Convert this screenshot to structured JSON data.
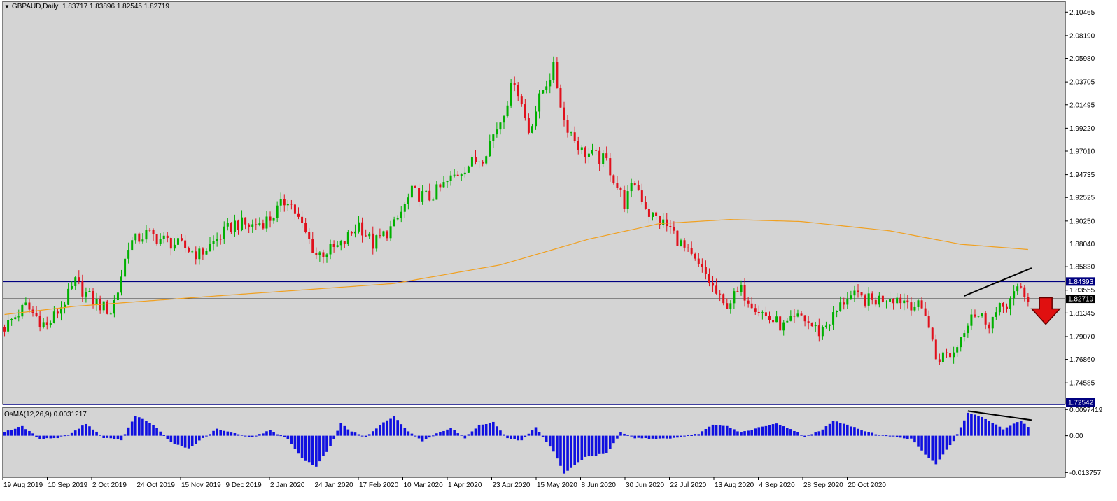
{
  "header": {
    "symbol": "GBPAUD,Daily",
    "ohlc": "1.83717 1.83896 1.82545 1.82719"
  },
  "osma": {
    "label": "OsMA(12,26,9)",
    "value": "0.0031217"
  },
  "colors": {
    "background": "#d4d4d4",
    "bull": "#00b000",
    "bear": "#e0101c",
    "ma": "#f0a020",
    "hline": "#000080",
    "histogram": "#1010e0",
    "arrow": "#e01010"
  },
  "chart_data": [
    {
      "type": "candlestick",
      "title": "",
      "symbol": "GBPAUD",
      "timeframe": "Daily",
      "ylim": [
        1.725,
        2.115
      ],
      "y_ticks": [
        "2.10465",
        "2.08190",
        "2.05980",
        "2.03705",
        "2.01495",
        "1.99220",
        "1.97010",
        "1.94735",
        "1.92525",
        "1.90250",
        "1.88040",
        "1.85830",
        "1.83555",
        "1.81345",
        "1.79070",
        "1.76860",
        "1.74585"
      ],
      "x_labels": [
        "19 Aug 2019",
        "10 Sep 2019",
        "2 Oct 2019",
        "24 Oct 2019",
        "15 Nov 2019",
        "9 Dec 2019",
        "2 Jan 2020",
        "24 Jan 2020",
        "17 Feb 2020",
        "10 Mar 2020",
        "1 Apr 2020",
        "23 Apr 2020",
        "15 May 2020",
        "8 Jun 2020",
        "30 Jun 2020",
        "22 Jul 2020",
        "13 Aug 2020",
        "4 Sep 2020",
        "28 Sep 2020",
        "20 Oct 2020"
      ],
      "price_path": [
        [
          0,
          1.8
        ],
        [
          6,
          1.82
        ],
        [
          12,
          1.8
        ],
        [
          18,
          1.83
        ],
        [
          20,
          1.843
        ],
        [
          25,
          1.825
        ],
        [
          30,
          1.815
        ],
        [
          32,
          1.835
        ],
        [
          35,
          1.88
        ],
        [
          40,
          1.89
        ],
        [
          50,
          1.878
        ],
        [
          55,
          1.87
        ],
        [
          60,
          1.885
        ],
        [
          65,
          1.9
        ],
        [
          70,
          1.898
        ],
        [
          75,
          1.905
        ],
        [
          80,
          1.925
        ],
        [
          85,
          1.89
        ],
        [
          88,
          1.87
        ],
        [
          95,
          1.878
        ],
        [
          100,
          1.9
        ],
        [
          104,
          1.88
        ],
        [
          110,
          1.898
        ],
        [
          115,
          1.93
        ],
        [
          120,
          1.925
        ],
        [
          125,
          1.94
        ],
        [
          130,
          1.955
        ],
        [
          135,
          1.965
        ],
        [
          140,
          2.0
        ],
        [
          144,
          2.04
        ],
        [
          148,
          1.99
        ],
        [
          152,
          2.03
        ],
        [
          155,
          2.05
        ],
        [
          158,
          2.0
        ],
        [
          163,
          1.97
        ],
        [
          170,
          1.96
        ],
        [
          175,
          1.92
        ],
        [
          178,
          1.94
        ],
        [
          182,
          1.91
        ],
        [
          188,
          1.895
        ],
        [
          193,
          1.87
        ],
        [
          198,
          1.85
        ],
        [
          203,
          1.82
        ],
        [
          208,
          1.835
        ],
        [
          215,
          1.81
        ],
        [
          220,
          1.8
        ],
        [
          225,
          1.81
        ],
        [
          230,
          1.795
        ],
        [
          234,
          1.81
        ],
        [
          238,
          1.83
        ],
        [
          245,
          1.825
        ],
        [
          250,
          1.83
        ],
        [
          255,
          1.825
        ],
        [
          260,
          1.815
        ],
        [
          263,
          1.77
        ],
        [
          268,
          1.775
        ],
        [
          273,
          1.815
        ],
        [
          278,
          1.805
        ],
        [
          282,
          1.82
        ],
        [
          287,
          1.837
        ],
        [
          289,
          1.827
        ]
      ],
      "ma200_path": [
        [
          0,
          1.812
        ],
        [
          20,
          1.82
        ],
        [
          60,
          1.83
        ],
        [
          110,
          1.842
        ],
        [
          140,
          1.86
        ],
        [
          165,
          1.885
        ],
        [
          185,
          1.9
        ],
        [
          205,
          1.904
        ],
        [
          225,
          1.902
        ],
        [
          250,
          1.893
        ],
        [
          270,
          1.88
        ],
        [
          289,
          1.875
        ]
      ],
      "horizontal_levels": [
        1.84393,
        1.725
      ],
      "price_labels": [
        "1.84393",
        "1.82719",
        "1.72542"
      ],
      "last_close": 1.82719,
      "trendline": {
        "from": [
          271,
          1.83
        ],
        "to": [
          290,
          1.857
        ]
      },
      "signal_arrow": {
        "direction": "down",
        "at": [
          294,
          1.812
        ]
      }
    },
    {
      "type": "bar",
      "title": "",
      "indicator": "OsMA(12,26,9)",
      "value_label": "0.0031217",
      "ylim": [
        -0.0155,
        0.0106
      ],
      "y_ticks": [
        "0.0097419",
        "0.00",
        "-0.013757"
      ],
      "osma_path": [
        [
          0,
          0.0015
        ],
        [
          5,
          0.0035
        ],
        [
          10,
          -0.0012
        ],
        [
          15,
          -0.0008
        ],
        [
          19,
          0.001
        ],
        [
          23,
          0.0045
        ],
        [
          28,
          -0.0008
        ],
        [
          33,
          -0.0015
        ],
        [
          37,
          0.0075
        ],
        [
          42,
          0.004
        ],
        [
          47,
          -0.0025
        ],
        [
          52,
          -0.0048
        ],
        [
          56,
          -0.001
        ],
        [
          60,
          0.0025
        ],
        [
          65,
          0.0008
        ],
        [
          70,
          -0.0005
        ],
        [
          75,
          0.002
        ],
        [
          80,
          -0.0012
        ],
        [
          84,
          -0.0085
        ],
        [
          88,
          -0.0115
        ],
        [
          92,
          -0.004
        ],
        [
          95,
          0.0045
        ],
        [
          98,
          0.0015
        ],
        [
          102,
          -0.0005
        ],
        [
          106,
          0.004
        ],
        [
          110,
          0.0072
        ],
        [
          114,
          0.0015
        ],
        [
          118,
          -0.002
        ],
        [
          122,
          0.0008
        ],
        [
          126,
          0.003
        ],
        [
          130,
          -0.0008
        ],
        [
          134,
          0.004
        ],
        [
          138,
          0.005
        ],
        [
          142,
          -0.001
        ],
        [
          146,
          -0.0018
        ],
        [
          150,
          0.003
        ],
        [
          155,
          -0.006
        ],
        [
          158,
          -0.014
        ],
        [
          164,
          -0.008
        ],
        [
          170,
          -0.0065
        ],
        [
          174,
          0.001
        ],
        [
          178,
          -0.0008
        ],
        [
          184,
          -0.0012
        ],
        [
          190,
          -0.0008
        ],
        [
          196,
          0.0008
        ],
        [
          200,
          0.004
        ],
        [
          204,
          0.0035
        ],
        [
          208,
          0.0012
        ],
        [
          213,
          0.003
        ],
        [
          218,
          0.0045
        ],
        [
          222,
          0.0025
        ],
        [
          226,
          -0.0002
        ],
        [
          230,
          0.0015
        ],
        [
          234,
          0.0055
        ],
        [
          238,
          0.004
        ],
        [
          244,
          0.0012
        ],
        [
          248,
          0.0002
        ],
        [
          252,
          -0.0005
        ],
        [
          256,
          -0.0012
        ],
        [
          260,
          -0.007
        ],
        [
          263,
          -0.0105
        ],
        [
          268,
          -0.002
        ],
        [
          272,
          0.0085
        ],
        [
          276,
          0.007
        ],
        [
          282,
          0.0025
        ],
        [
          287,
          0.0055
        ],
        [
          289,
          0.0031
        ]
      ],
      "divergence_line": {
        "from": [
          272,
          0.0092
        ],
        "to": [
          290,
          0.0058
        ]
      }
    }
  ]
}
